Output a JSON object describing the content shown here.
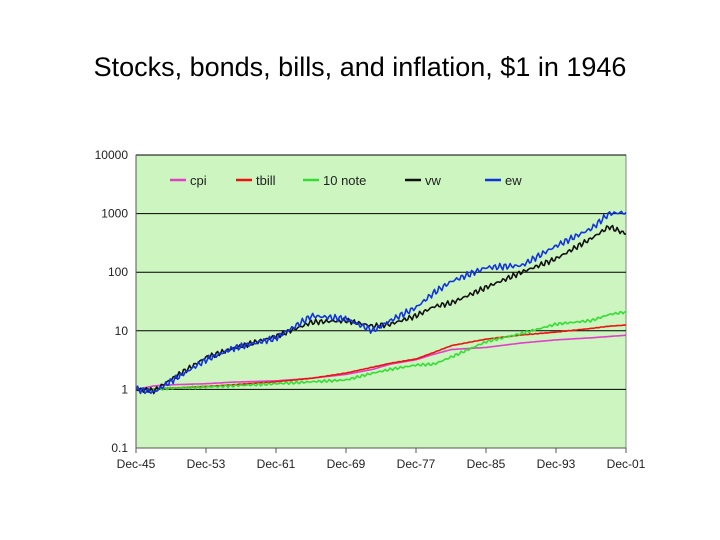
{
  "slide": {
    "title": "Stocks, bonds, bills, and inflation, $1 in 1946"
  },
  "colors": {
    "plot_background": "#ccf5c0",
    "grid": "#000000",
    "cpi": "#e040c8",
    "tbill": "#ee1111",
    "10 note": "#33dd33",
    "vw": "#111111",
    "ew": "#1133dd"
  },
  "chart_data": {
    "type": "line",
    "title": "",
    "xlabel": "",
    "ylabel": "",
    "y_scale": "log",
    "ylim": [
      0.1,
      10000
    ],
    "xlim": [
      1945.92,
      2001.92
    ],
    "grid": true,
    "legend_position": "top",
    "x_ticks": [
      "Dec-45",
      "Dec-53",
      "Dec-61",
      "Dec-69",
      "Dec-77",
      "Dec-85",
      "Dec-93",
      "Dec-01"
    ],
    "y_ticks": [
      "0.1",
      "1",
      "10",
      "100",
      "1000",
      "10000"
    ],
    "x": [
      1945.92,
      1948,
      1950,
      1953.92,
      1957,
      1961.92,
      1966,
      1969.92,
      1973,
      1975,
      1977.92,
      1980,
      1982,
      1985.92,
      1990,
      1993.92,
      1998,
      2000,
      2001.92
    ],
    "series": [
      {
        "name": "cpi",
        "values": [
          1,
          1.15,
          1.2,
          1.25,
          1.33,
          1.4,
          1.55,
          1.8,
          2.2,
          2.7,
          3.2,
          4.0,
          4.8,
          5.2,
          6.2,
          7.0,
          7.6,
          8.0,
          8.4
        ]
      },
      {
        "name": "tbill",
        "values": [
          1,
          1.02,
          1.05,
          1.12,
          1.2,
          1.35,
          1.55,
          1.9,
          2.4,
          2.8,
          3.3,
          4.3,
          5.6,
          7.2,
          8.5,
          9.5,
          11.0,
          12.0,
          12.5
        ]
      },
      {
        "name": "10 note",
        "values": [
          1,
          1.0,
          1.05,
          1.1,
          1.15,
          1.25,
          1.35,
          1.45,
          1.9,
          2.2,
          2.6,
          2.7,
          3.6,
          6.5,
          9.0,
          13.0,
          15.0,
          19.0,
          21.0
        ]
      },
      {
        "name": "vw",
        "values": [
          1,
          0.95,
          1.5,
          3.5,
          5.0,
          8.0,
          14.0,
          15.0,
          12.0,
          13.0,
          18.0,
          26.0,
          30.0,
          55.0,
          100.0,
          170.0,
          380.0,
          600.0,
          450.0
        ]
      },
      {
        "name": "ew",
        "values": [
          1,
          0.9,
          1.4,
          3.2,
          5.0,
          7.5,
          18.0,
          16.0,
          10.0,
          15.0,
          25.0,
          45.0,
          70.0,
          120.0,
          130.0,
          280.0,
          560.0,
          1000.0,
          1050.0
        ]
      }
    ]
  }
}
